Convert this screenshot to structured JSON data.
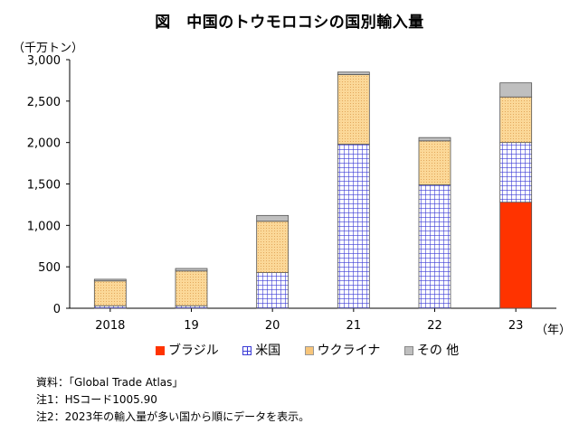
{
  "title": "図　中国のトウモロコシの国別輸入量",
  "chart_data": {
    "type": "bar",
    "stacked": true,
    "title": "図　中国のトウモロコシの国別輸入量",
    "ylabel": "（千万トン）",
    "xlabel": "（年）",
    "ylim": [
      0,
      3000
    ],
    "yticks": [
      "0",
      "500",
      "1,000",
      "1,500",
      "2,000",
      "2,500",
      "3,000"
    ],
    "categories": [
      "2018",
      "19",
      "20",
      "21",
      "22",
      "23"
    ],
    "series": [
      {
        "name": "ブラジル",
        "color": "#ff3300",
        "pattern": "solid",
        "values": [
          0,
          0,
          0,
          0,
          0,
          1280
        ]
      },
      {
        "name": "米国",
        "color": "#4040e0",
        "pattern": "grid",
        "values": [
          30,
          30,
          430,
          1980,
          1490,
          720
        ]
      },
      {
        "name": "ウクライナ",
        "color": "#f7c57a",
        "pattern": "dots",
        "values": [
          300,
          420,
          620,
          840,
          530,
          550
        ]
      },
      {
        "name": "その 他",
        "color": "#bfbfbf",
        "pattern": "solid",
        "values": [
          20,
          30,
          70,
          30,
          40,
          170
        ]
      }
    ],
    "legend_position": "bottom",
    "grid": false
  },
  "notes": [
    "資料：「Global Trade Atlas」",
    "注1：HSコード1005.90",
    "注2：2023年の輸入量が多い国から順にデータを表示。"
  ]
}
